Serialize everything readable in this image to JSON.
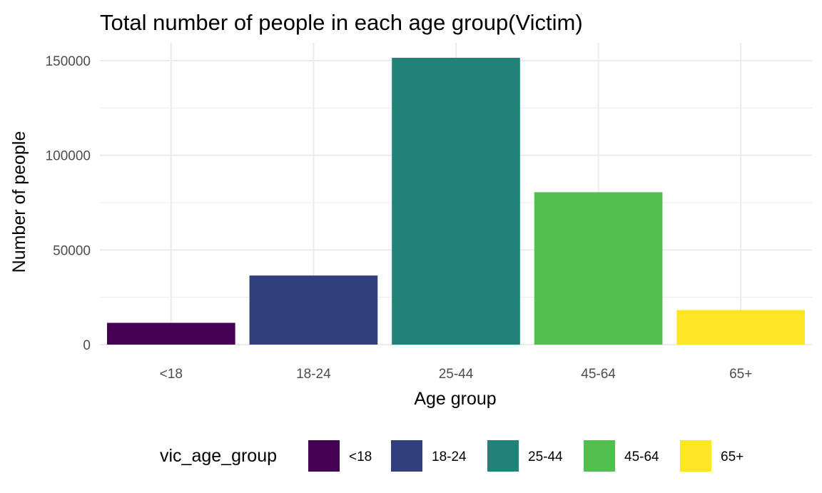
{
  "chart_data": {
    "type": "bar",
    "title": "Total number of people in each age group(Victim)",
    "xlabel": "Age group",
    "ylabel": "Number of people",
    "categories": [
      "<18",
      "18-24",
      "25-44",
      "45-64",
      "65+"
    ],
    "values": [
      11500,
      36500,
      151500,
      80500,
      18300
    ],
    "colors": [
      "#440154",
      "#31407d",
      "#21827a",
      "#52c04f",
      "#fde725"
    ],
    "ylim": [
      0,
      160000
    ],
    "yticks": [
      0,
      50000,
      100000,
      150000
    ],
    "ytick_labels": [
      "0",
      "50000",
      "100000",
      "150000"
    ],
    "grid": true,
    "legend": {
      "title": "vic_age_group",
      "position": "bottom",
      "labels": [
        "<18",
        "18-24",
        "25-44",
        "45-64",
        "65+"
      ]
    }
  }
}
